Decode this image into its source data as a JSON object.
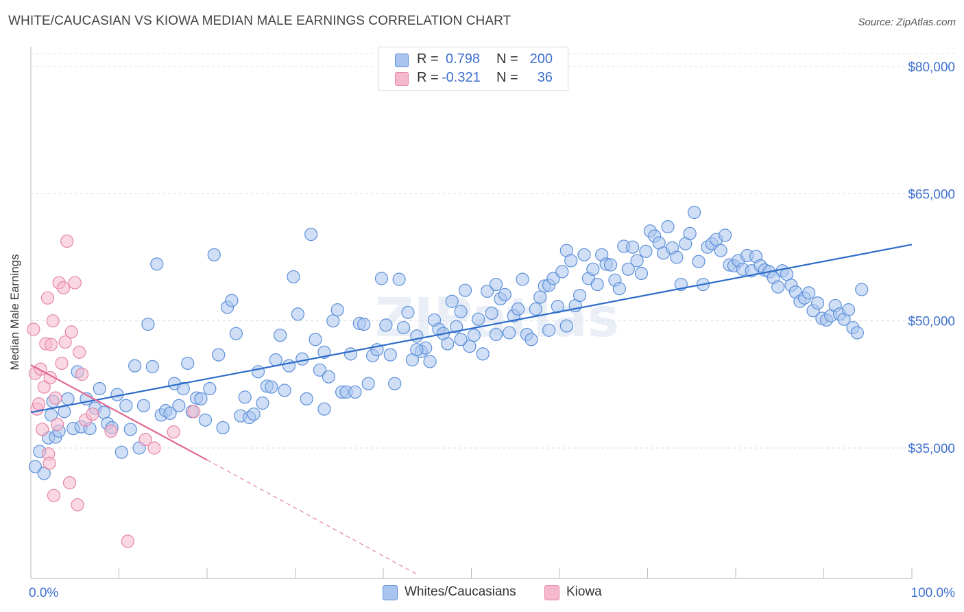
{
  "title": "WHITE/CAUCASIAN VS KIOWA MEDIAN MALE EARNINGS CORRELATION CHART",
  "source": "Source: ZipAtlas.com",
  "watermark": "ZIPatlas",
  "legend_stats": [
    {
      "r_label": "R =",
      "r_value": "0.798",
      "n_label": "N =",
      "n_value": "200"
    },
    {
      "r_label": "R =",
      "r_value": "-0.321",
      "n_label": "N =",
      "n_value": "36"
    }
  ],
  "colors": {
    "blue_fill": "#a9c4ee",
    "blue_stroke": "#5b8fd9",
    "blue_line": "#2c6cc9",
    "pink_fill": "#f6b8cc",
    "pink_stroke": "#e585a6",
    "pink_line": "#e0678f",
    "axis_text": "#3d6fd0"
  },
  "chart_data": {
    "type": "scatter",
    "title": "WHITE/CAUCASIAN VS KIOWA MEDIAN MALE EARNINGS CORRELATION CHART",
    "xlabel": "",
    "ylabel": "Median Male Earnings",
    "xlim": [
      0,
      100
    ],
    "ylim": [
      20000,
      85000
    ],
    "x_tick_labels": [
      "0.0%",
      "100.0%"
    ],
    "y_ticks": [
      35000,
      50000,
      65000,
      80000
    ],
    "y_tick_labels": [
      "$35,000",
      "$50,000",
      "$65,000",
      "$80,000"
    ],
    "grid": true,
    "legend": "bottom-center",
    "series": [
      {
        "name": "Whites/Caucasians",
        "r": 0.798,
        "n": 200,
        "trend": {
          "x": [
            0,
            100
          ],
          "y": [
            39200,
            59000
          ]
        },
        "points": [
          [
            0.5,
            32800
          ],
          [
            1.0,
            34600
          ],
          [
            1.5,
            32000
          ],
          [
            2.0,
            36200
          ],
          [
            2.3,
            38900
          ],
          [
            2.5,
            40500
          ],
          [
            2.8,
            36300
          ],
          [
            3.2,
            37000
          ],
          [
            3.8,
            39300
          ],
          [
            4.2,
            40800
          ],
          [
            4.8,
            37300
          ],
          [
            5.3,
            44000
          ],
          [
            5.7,
            37500
          ],
          [
            6.3,
            40800
          ],
          [
            6.7,
            37300
          ],
          [
            7.3,
            39700
          ],
          [
            7.8,
            42000
          ],
          [
            8.3,
            39200
          ],
          [
            8.7,
            37900
          ],
          [
            9.2,
            37400
          ],
          [
            9.8,
            41300
          ],
          [
            10.3,
            34500
          ],
          [
            10.8,
            40000
          ],
          [
            11.3,
            37200
          ],
          [
            11.8,
            44700
          ],
          [
            12.3,
            35000
          ],
          [
            12.8,
            40000
          ],
          [
            13.3,
            49600
          ],
          [
            13.8,
            44600
          ],
          [
            14.3,
            56700
          ],
          [
            14.8,
            38900
          ],
          [
            15.3,
            39400
          ],
          [
            15.8,
            39100
          ],
          [
            16.3,
            42600
          ],
          [
            16.8,
            40000
          ],
          [
            17.3,
            42000
          ],
          [
            17.8,
            45000
          ],
          [
            18.3,
            39300
          ],
          [
            18.8,
            40900
          ],
          [
            19.3,
            40800
          ],
          [
            19.8,
            38300
          ],
          [
            20.3,
            42000
          ],
          [
            20.8,
            57800
          ],
          [
            21.3,
            46000
          ],
          [
            21.8,
            37400
          ],
          [
            22.3,
            51600
          ],
          [
            22.8,
            52400
          ],
          [
            23.3,
            48500
          ],
          [
            23.8,
            38800
          ],
          [
            24.3,
            41000
          ],
          [
            24.8,
            38600
          ],
          [
            25.3,
            39000
          ],
          [
            25.8,
            44000
          ],
          [
            26.3,
            40300
          ],
          [
            26.8,
            42300
          ],
          [
            27.3,
            42200
          ],
          [
            27.8,
            45400
          ],
          [
            28.3,
            48300
          ],
          [
            28.8,
            41800
          ],
          [
            29.3,
            44700
          ],
          [
            29.8,
            55200
          ],
          [
            30.3,
            50800
          ],
          [
            30.8,
            45500
          ],
          [
            31.3,
            40800
          ],
          [
            31.8,
            60200
          ],
          [
            32.3,
            47800
          ],
          [
            32.8,
            44200
          ],
          [
            33.3,
            39600
          ],
          [
            33.8,
            43400
          ],
          [
            34.3,
            50000
          ],
          [
            34.8,
            51300
          ],
          [
            35.3,
            41600
          ],
          [
            35.8,
            41600
          ],
          [
            36.3,
            46100
          ],
          [
            36.8,
            41600
          ],
          [
            37.3,
            49700
          ],
          [
            37.8,
            49600
          ],
          [
            38.3,
            42600
          ],
          [
            38.8,
            45900
          ],
          [
            39.3,
            46600
          ],
          [
            39.8,
            55000
          ],
          [
            40.3,
            49500
          ],
          [
            40.8,
            46000
          ],
          [
            41.3,
            42600
          ],
          [
            41.8,
            54900
          ],
          [
            42.3,
            49200
          ],
          [
            42.8,
            51000
          ],
          [
            43.3,
            45400
          ],
          [
            43.8,
            48200
          ],
          [
            44.3,
            46400
          ],
          [
            44.8,
            46800
          ],
          [
            45.3,
            45200
          ],
          [
            45.8,
            50100
          ],
          [
            46.3,
            49000
          ],
          [
            46.8,
            48500
          ],
          [
            47.3,
            47300
          ],
          [
            47.8,
            52300
          ],
          [
            48.3,
            49300
          ],
          [
            48.8,
            51100
          ],
          [
            49.3,
            53600
          ],
          [
            49.8,
            47000
          ],
          [
            50.3,
            48300
          ],
          [
            50.8,
            50200
          ],
          [
            51.3,
            46100
          ],
          [
            51.8,
            53500
          ],
          [
            52.3,
            50900
          ],
          [
            52.8,
            54300
          ],
          [
            53.3,
            52600
          ],
          [
            53.8,
            53100
          ],
          [
            54.3,
            48600
          ],
          [
            54.8,
            50600
          ],
          [
            55.3,
            51400
          ],
          [
            55.8,
            54900
          ],
          [
            56.3,
            48400
          ],
          [
            56.8,
            47800
          ],
          [
            57.3,
            51400
          ],
          [
            57.8,
            52800
          ],
          [
            58.3,
            54100
          ],
          [
            58.8,
            54200
          ],
          [
            59.3,
            55000
          ],
          [
            59.8,
            51700
          ],
          [
            60.3,
            55800
          ],
          [
            60.8,
            58300
          ],
          [
            61.3,
            57100
          ],
          [
            61.8,
            51800
          ],
          [
            62.3,
            53000
          ],
          [
            62.8,
            57800
          ],
          [
            63.3,
            55000
          ],
          [
            63.8,
            56100
          ],
          [
            64.3,
            54300
          ],
          [
            64.8,
            57800
          ],
          [
            65.3,
            56700
          ],
          [
            65.8,
            56600
          ],
          [
            66.3,
            54800
          ],
          [
            66.8,
            53800
          ],
          [
            67.3,
            58800
          ],
          [
            67.8,
            56100
          ],
          [
            68.3,
            58700
          ],
          [
            68.8,
            57100
          ],
          [
            69.3,
            55600
          ],
          [
            69.8,
            58200
          ],
          [
            70.3,
            60600
          ],
          [
            70.8,
            60000
          ],
          [
            71.3,
            59200
          ],
          [
            71.8,
            58000
          ],
          [
            72.3,
            61100
          ],
          [
            72.8,
            58600
          ],
          [
            73.3,
            57500
          ],
          [
            73.8,
            54300
          ],
          [
            74.3,
            59100
          ],
          [
            74.8,
            60300
          ],
          [
            75.3,
            62800
          ],
          [
            75.8,
            57000
          ],
          [
            76.3,
            54300
          ],
          [
            76.8,
            58700
          ],
          [
            77.3,
            59100
          ],
          [
            77.8,
            59600
          ],
          [
            78.3,
            58300
          ],
          [
            78.8,
            60100
          ],
          [
            79.3,
            56600
          ],
          [
            79.8,
            56500
          ],
          [
            80.3,
            57100
          ],
          [
            80.8,
            56100
          ],
          [
            81.3,
            57700
          ],
          [
            81.8,
            55900
          ],
          [
            82.3,
            57600
          ],
          [
            82.8,
            56500
          ],
          [
            83.3,
            56000
          ],
          [
            83.8,
            55800
          ],
          [
            84.3,
            55100
          ],
          [
            84.8,
            54000
          ],
          [
            85.3,
            55900
          ],
          [
            85.8,
            55500
          ],
          [
            86.3,
            54200
          ],
          [
            86.8,
            53400
          ],
          [
            87.3,
            52300
          ],
          [
            87.8,
            52700
          ],
          [
            88.3,
            53300
          ],
          [
            88.8,
            51200
          ],
          [
            89.3,
            52100
          ],
          [
            89.8,
            50300
          ],
          [
            90.3,
            50100
          ],
          [
            90.8,
            50600
          ],
          [
            91.3,
            51800
          ],
          [
            91.8,
            50800
          ],
          [
            92.3,
            50200
          ],
          [
            92.8,
            51300
          ],
          [
            93.3,
            49200
          ],
          [
            93.8,
            48600
          ],
          [
            94.3,
            53700
          ],
          [
            60.8,
            49400
          ],
          [
            58.8,
            48900
          ],
          [
            52.8,
            48400
          ],
          [
            48.8,
            47800
          ],
          [
            43.8,
            46600
          ],
          [
            33.3,
            46300
          ]
        ]
      },
      {
        "name": "Kiowa",
        "r": -0.321,
        "n": 36,
        "trend": {
          "x": [
            0,
            20
          ],
          "y": [
            44800,
            33600
          ]
        },
        "trend_extension": {
          "x": [
            20,
            44
          ],
          "y": [
            33600,
            20000
          ]
        },
        "points": [
          [
            0.3,
            49000
          ],
          [
            0.5,
            43800
          ],
          [
            0.7,
            39600
          ],
          [
            0.9,
            40200
          ],
          [
            1.1,
            44300
          ],
          [
            1.3,
            37200
          ],
          [
            1.5,
            42200
          ],
          [
            1.7,
            47300
          ],
          [
            1.9,
            52700
          ],
          [
            2.0,
            34300
          ],
          [
            2.1,
            33200
          ],
          [
            2.2,
            43300
          ],
          [
            2.3,
            47200
          ],
          [
            2.5,
            50000
          ],
          [
            2.6,
            29400
          ],
          [
            2.8,
            40900
          ],
          [
            3.0,
            37800
          ],
          [
            3.2,
            54500
          ],
          [
            3.5,
            45000
          ],
          [
            3.7,
            53900
          ],
          [
            3.9,
            47500
          ],
          [
            4.1,
            59400
          ],
          [
            4.4,
            30900
          ],
          [
            4.6,
            48700
          ],
          [
            5.0,
            54500
          ],
          [
            5.3,
            28300
          ],
          [
            5.5,
            46300
          ],
          [
            5.8,
            43700
          ],
          [
            6.2,
            38300
          ],
          [
            7.0,
            39000
          ],
          [
            9.1,
            37000
          ],
          [
            11.0,
            24000
          ],
          [
            13.0,
            36000
          ],
          [
            14.0,
            35000
          ],
          [
            16.2,
            36900
          ],
          [
            18.5,
            39300
          ]
        ]
      }
    ]
  },
  "bottom_legend": [
    {
      "label": "Whites/Caucasians"
    },
    {
      "label": "Kiowa"
    }
  ]
}
